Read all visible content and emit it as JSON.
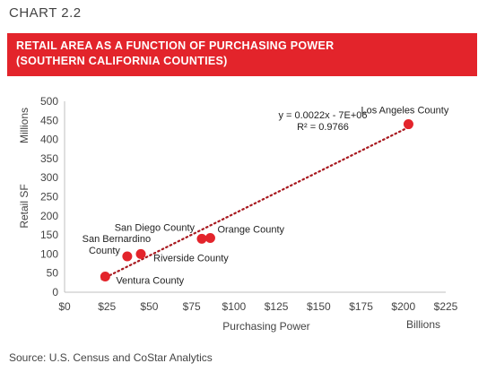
{
  "header": {
    "chart_number": "CHART 2.2",
    "title_line1": "RETAIL AREA AS A FUNCTION OF PURCHASING POWER",
    "title_line2": "(SOUTHERN CALIFORNIA COUNTIES)"
  },
  "source": "Source: U.S. Census and CoStar Analytics",
  "colors": {
    "banner": "#e3242b",
    "point": "#e3242b",
    "trend": "#a8181e",
    "axis": "#bfbfbf"
  },
  "chart_data": {
    "type": "scatter",
    "title": "RETAIL AREA AS A FUNCTION OF PURCHASING POWER (SOUTHERN CALIFORNIA COUNTIES)",
    "xlabel": "Purchasing Power",
    "x_unit": "Billions",
    "ylabel": "Retail SF",
    "y_unit": "Millions",
    "xlim": [
      0,
      225
    ],
    "ylim": [
      0,
      500
    ],
    "x_ticks": [
      0,
      25,
      50,
      75,
      100,
      125,
      150,
      175,
      200,
      225
    ],
    "x_tick_labels": [
      "$0",
      "$25",
      "$50",
      "$75",
      "$100",
      "$125",
      "$150",
      "$175",
      "$200",
      "$225"
    ],
    "y_ticks": [
      0,
      50,
      100,
      150,
      200,
      250,
      300,
      350,
      400,
      450,
      500
    ],
    "y_tick_labels": [
      "0",
      "50",
      "100",
      "150",
      "200",
      "250",
      "300",
      "350",
      "400",
      "450",
      "500"
    ],
    "grid": false,
    "points": [
      {
        "label": "Los Angeles County",
        "x": 203,
        "y": 440
      },
      {
        "label": "Orange County",
        "x": 86,
        "y": 142
      },
      {
        "label": "San Diego County",
        "x": 81,
        "y": 140
      },
      {
        "label": "Riverside County",
        "x": 45,
        "y": 100
      },
      {
        "label": "San Bernardino County",
        "x": 37,
        "y": 94
      },
      {
        "label": "Ventura County",
        "x": 24,
        "y": 41
      }
    ],
    "trendline": {
      "type": "linear",
      "equation": "y = 0.0022x - 7E+06",
      "r_squared": "R² = 0.9766",
      "x_range": [
        22,
        203
      ],
      "y_range": [
        34,
        432
      ]
    }
  }
}
